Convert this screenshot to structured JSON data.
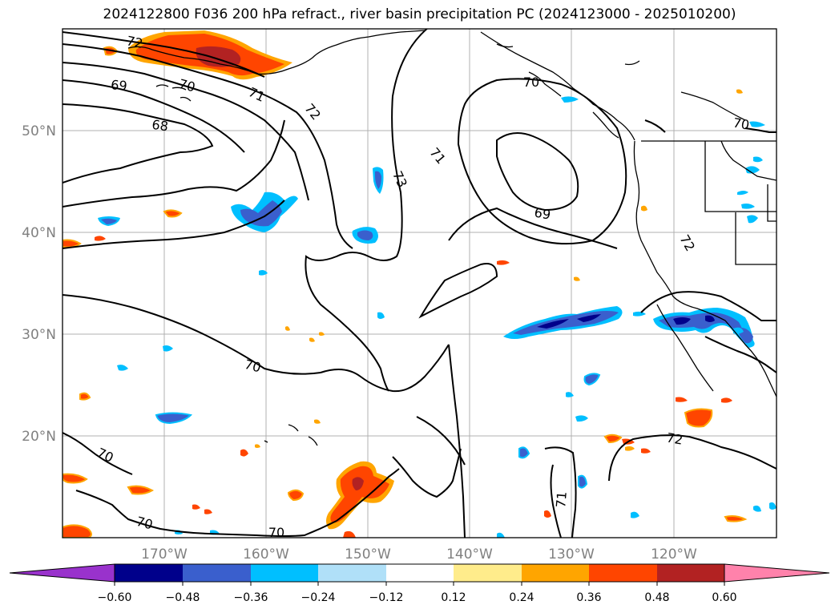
{
  "title": "2024122800 F036 200 hPa refract., river basin precipitation PC (2024123000 - 2025010200)",
  "lat_labels": [
    "50°N",
    "40°N",
    "30°N",
    "20°N"
  ],
  "lon_labels": [
    "170°W",
    "160°W",
    "150°W",
    "140°W",
    "130°W",
    "120°W"
  ],
  "contour_labels": [
    "72",
    "69",
    "70",
    "71",
    "72",
    "68",
    "73",
    "71",
    "70",
    "69",
    "70",
    "72",
    "70",
    "72",
    "70",
    "71",
    "70",
    "70"
  ],
  "colorbar": {
    "tick_labels": [
      "−0.60",
      "−0.48",
      "−0.36",
      "−0.24",
      "−0.12",
      "0.12",
      "0.24",
      "0.36",
      "0.48",
      "0.60"
    ],
    "colors": [
      "#9932cc",
      "#00008b",
      "#3a5fcd",
      "#00bfff",
      "#b0e0f8",
      "#ffffff",
      "#ffec8b",
      "#ffa500",
      "#ff4500",
      "#b22222",
      "#ff82ab"
    ]
  },
  "colors": {
    "positive_strong": "#b22222",
    "positive": "#ff4500",
    "positive_weak": "#ffa500",
    "negative_strong": "#00008b",
    "negative": "#3a5fcd",
    "negative_weak": "#00bfff",
    "gridline": "#b0b0b0",
    "axis_label": "#808080"
  }
}
